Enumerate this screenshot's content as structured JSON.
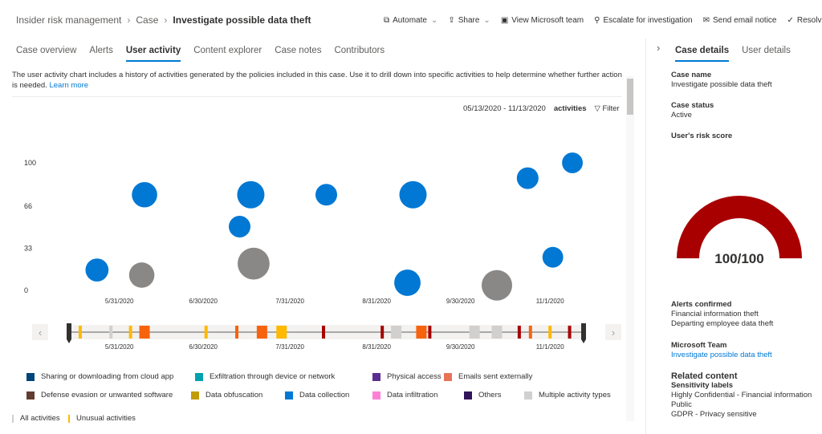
{
  "breadcrumb": [
    "Insider risk management",
    "Case",
    "Investigate possible data theft"
  ],
  "commands": [
    {
      "icon": "automate-icon",
      "glyph": "⧉",
      "label": "Automate",
      "dropdown": true
    },
    {
      "icon": "share-icon",
      "glyph": "⇪",
      "label": "Share",
      "dropdown": true
    },
    {
      "icon": "teams-icon",
      "glyph": "▣",
      "label": "View Microsoft team"
    },
    {
      "icon": "escalate-icon",
      "glyph": "⚲",
      "label": "Escalate for investigation"
    },
    {
      "icon": "mail-icon",
      "glyph": "✉",
      "label": "Send email notice"
    },
    {
      "icon": "check-icon",
      "glyph": "✓",
      "label": "Resolve ca"
    }
  ],
  "tabs": [
    {
      "label": "Case overview"
    },
    {
      "label": "Alerts"
    },
    {
      "label": "User activity",
      "selected": true
    },
    {
      "label": "Content explorer"
    },
    {
      "label": "Case notes"
    },
    {
      "label": "Contributors"
    }
  ],
  "description": "The user activity chart includes a history of activities generated by the policies included in this case. Use it to drill down into specific activities to help determine whether further action is needed.",
  "learn_more": "Learn more",
  "toolbar": {
    "date_range": "05/13/2020 - 11/13/2020",
    "activities": "activities",
    "filter": "Filter"
  },
  "chart_data": {
    "type": "scatter",
    "x_start": "2020-05-13",
    "x_end": "2020-11-13",
    "x_ticks": [
      "5/31/2020",
      "6/30/2020",
      "7/31/2020",
      "8/31/2020",
      "9/30/2020",
      "11/1/2020"
    ],
    "x_tick_dates": [
      "2020-05-31",
      "2020-06-30",
      "2020-07-31",
      "2020-08-31",
      "2020-09-30",
      "2020-11-01"
    ],
    "y_ticks": [
      0,
      33,
      66,
      100
    ],
    "ylim": [
      0,
      100
    ],
    "grid": false,
    "points": [
      {
        "date": "2020-05-23",
        "y": 16,
        "size": 2,
        "type": "Data collection"
      },
      {
        "date": "2020-06-09",
        "y": 75,
        "size": 3,
        "type": "Data collection"
      },
      {
        "date": "2020-06-08",
        "y": 12,
        "size": 3,
        "type": "Multiple activity types"
      },
      {
        "date": "2020-07-13",
        "y": 50,
        "size": 1.5,
        "type": "Data collection"
      },
      {
        "date": "2020-07-17",
        "y": 75,
        "size": 4,
        "type": "Data collection"
      },
      {
        "date": "2020-07-18",
        "y": 21,
        "size": 7,
        "type": "Multiple activity types"
      },
      {
        "date": "2020-08-13",
        "y": 75,
        "size": 1.5,
        "type": "Data collection"
      },
      {
        "date": "2020-09-11",
        "y": 6,
        "size": 3.5,
        "type": "Data collection"
      },
      {
        "date": "2020-09-13",
        "y": 75,
        "size": 4,
        "type": "Data collection"
      },
      {
        "date": "2020-10-13",
        "y": 4,
        "size": 6,
        "type": "Multiple activity types"
      },
      {
        "date": "2020-10-24",
        "y": 88,
        "size": 1.5,
        "type": "Data collection"
      },
      {
        "date": "2020-11-02",
        "y": 26,
        "size": 1.2,
        "type": "Data collection"
      },
      {
        "date": "2020-11-09",
        "y": 100,
        "size": 1.2,
        "type": "Data collection"
      }
    ],
    "timeline": [
      {
        "date": "2020-05-17",
        "color": "#ffb900",
        "span": "narrow"
      },
      {
        "date": "2020-05-28",
        "color": "#d2d0ce",
        "span": "narrow"
      },
      {
        "date": "2020-06-04",
        "color": "#ffb900",
        "span": "narrow"
      },
      {
        "date": "2020-06-09",
        "color": "#f7630c",
        "span": "wide"
      },
      {
        "date": "2020-07-01",
        "color": "#ffb900",
        "span": "narrow"
      },
      {
        "date": "2020-07-12",
        "color": "#f7630c",
        "span": "narrow"
      },
      {
        "date": "2020-07-21",
        "color": "#f7630c",
        "span": "wide"
      },
      {
        "date": "2020-07-28",
        "color": "#ffb900",
        "span": "wide"
      },
      {
        "date": "2020-08-12",
        "color": "#a80000",
        "span": "narrow"
      },
      {
        "date": "2020-09-02",
        "color": "#a80000",
        "span": "narrow"
      },
      {
        "date": "2020-09-07",
        "color": "#d2d0ce",
        "span": "wide"
      },
      {
        "date": "2020-09-16",
        "color": "#f7630c",
        "span": "wide"
      },
      {
        "date": "2020-09-19",
        "color": "#a80000",
        "span": "narrow"
      },
      {
        "date": "2020-10-05",
        "color": "#d2d0ce",
        "span": "wide"
      },
      {
        "date": "2020-10-13",
        "color": "#d2d0ce",
        "span": "wide"
      },
      {
        "date": "2020-10-21",
        "color": "#a80000",
        "span": "narrow"
      },
      {
        "date": "2020-10-25",
        "color": "#f7630c",
        "span": "narrow"
      },
      {
        "date": "2020-11-01",
        "color": "#ffb900",
        "span": "narrow"
      },
      {
        "date": "2020-11-08",
        "color": "#a80000",
        "span": "narrow"
      }
    ],
    "legend": [
      {
        "label": "Sharing or downloading from cloud app",
        "color": "#004578"
      },
      {
        "label": "Exfiltration through device or network",
        "color": "#00a2ad"
      },
      {
        "label": "Physical access",
        "color": "#5c2e91"
      },
      {
        "label": "Emails sent externally",
        "color": "#e8735a"
      },
      {
        "label": "Defense evasion or unwanted software",
        "color": "#603d30"
      },
      {
        "label": "Data obfuscation",
        "color": "#c19c00"
      },
      {
        "label": "Data collection",
        "color": "#0078d4"
      },
      {
        "label": "Data infiltration",
        "color": "#ff7fd5"
      },
      {
        "label": "Others",
        "color": "#32145a"
      },
      {
        "label": "Multiple activity types",
        "color": "#d2d0ce"
      }
    ],
    "sub_legend": [
      {
        "label": "All activities",
        "color": "#d2d0ce"
      },
      {
        "label": "Unusual activities",
        "color": "#ffb900"
      }
    ]
  },
  "side": {
    "tabs": [
      {
        "label": "Case details",
        "selected": true
      },
      {
        "label": "User details"
      }
    ],
    "case_name_label": "Case name",
    "case_name": "Investigate possible data theft",
    "case_status_label": "Case status",
    "case_status": "Active",
    "risk_label": "User's risk score",
    "risk_score": 100,
    "risk_max": 100,
    "risk_text": "100/100",
    "risk_color": "#a80000",
    "alerts_label": "Alerts confirmed",
    "alerts": [
      "Financial information theft",
      "Departing employee data theft"
    ],
    "team_label": "Microsoft Team",
    "team_link": "Investigate possible data theft",
    "related_label": "Related content",
    "sens_label": "Sensitivity labels",
    "sens": [
      "Highly Confidential - Financial information",
      "Public",
      "GDPR - Privacy sensitive"
    ]
  }
}
